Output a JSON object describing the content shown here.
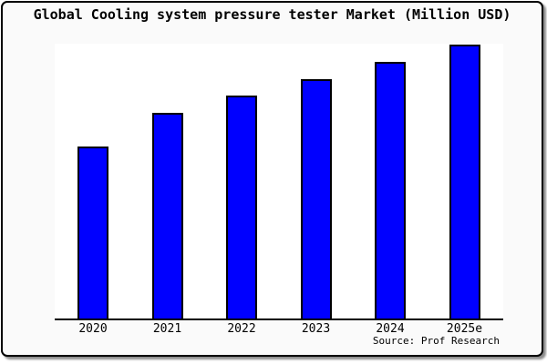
{
  "chart": {
    "title": "Global Cooling system pressure tester Market (Million USD)",
    "source": "Source: Prof Research"
  },
  "chart_data": {
    "type": "bar",
    "title": "Global Cooling system pressure tester Market (Million USD)",
    "categories": [
      "2020",
      "2021",
      "2022",
      "2023",
      "2024",
      "2025e"
    ],
    "values": [
      189,
      226,
      245,
      263,
      282,
      301
    ],
    "values_note": "relative bar heights in pixels; chart displays no y-axis, tick values, gridlines, or data labels",
    "xlabel": "",
    "ylabel": "",
    "legend": false,
    "grid": false,
    "bar_color": "#0000FF",
    "bar_border_color": "#000000",
    "figure_background": "#FAFAFA",
    "plot_background": "#FFFFFF",
    "source": "Source: Prof Research"
  }
}
